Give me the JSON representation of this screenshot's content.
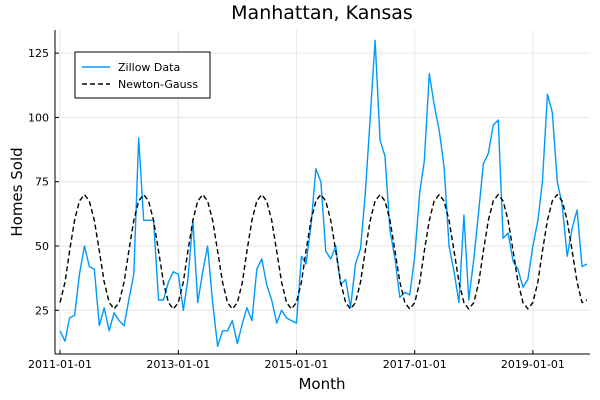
{
  "chart_data": {
    "type": "line",
    "title": "Manhattan, Kansas",
    "xlabel": "Month",
    "ylabel": "Homes Sold",
    "x_axis_type": "date",
    "xlim": [
      "2010-12-01",
      "2019-12-20"
    ],
    "ylim": [
      8,
      134
    ],
    "x_ticks": [
      "2011-01-01",
      "2013-01-01",
      "2015-01-01",
      "2017-01-01",
      "2019-01-01"
    ],
    "y_ticks": [
      25,
      50,
      75,
      100,
      125
    ],
    "grid": true,
    "legend_position": "top-left",
    "x": [
      "2011-01-01",
      "2011-02-01",
      "2011-03-01",
      "2011-04-01",
      "2011-05-01",
      "2011-06-01",
      "2011-07-01",
      "2011-08-01",
      "2011-09-01",
      "2011-10-01",
      "2011-11-01",
      "2011-12-01",
      "2012-01-01",
      "2012-02-01",
      "2012-03-01",
      "2012-04-01",
      "2012-05-01",
      "2012-06-01",
      "2012-07-01",
      "2012-08-01",
      "2012-09-01",
      "2012-10-01",
      "2012-11-01",
      "2012-12-01",
      "2013-01-01",
      "2013-02-01",
      "2013-03-01",
      "2013-04-01",
      "2013-05-01",
      "2013-06-01",
      "2013-07-01",
      "2013-08-01",
      "2013-09-01",
      "2013-10-01",
      "2013-11-01",
      "2013-12-01",
      "2014-01-01",
      "2014-02-01",
      "2014-03-01",
      "2014-04-01",
      "2014-05-01",
      "2014-06-01",
      "2014-07-01",
      "2014-08-01",
      "2014-09-01",
      "2014-10-01",
      "2014-11-01",
      "2014-12-01",
      "2015-01-01",
      "2015-02-01",
      "2015-03-01",
      "2015-04-01",
      "2015-05-01",
      "2015-06-01",
      "2015-07-01",
      "2015-08-01",
      "2015-09-01",
      "2015-10-01",
      "2015-11-01",
      "2015-12-01",
      "2016-01-01",
      "2016-02-01",
      "2016-03-01",
      "2016-04-01",
      "2016-05-01",
      "2016-06-01",
      "2016-07-01",
      "2016-08-01",
      "2016-09-01",
      "2016-10-01",
      "2016-11-01",
      "2016-12-01",
      "2017-01-01",
      "2017-02-01",
      "2017-03-01",
      "2017-04-01",
      "2017-05-01",
      "2017-06-01",
      "2017-07-01",
      "2017-08-01",
      "2017-09-01",
      "2017-10-01",
      "2017-11-01",
      "2017-12-01",
      "2018-01-01",
      "2018-02-01",
      "2018-03-01",
      "2018-04-01",
      "2018-05-01",
      "2018-06-01",
      "2018-07-01",
      "2018-08-01",
      "2018-09-01",
      "2018-10-01",
      "2018-11-01",
      "2018-12-01",
      "2019-01-01",
      "2019-02-01",
      "2019-03-01",
      "2019-04-01",
      "2019-05-01",
      "2019-06-01",
      "2019-07-01",
      "2019-08-01",
      "2019-09-01",
      "2019-10-01",
      "2019-11-01",
      "2019-12-01"
    ],
    "series": [
      {
        "name": "Zillow Data",
        "color": "#009AFA",
        "style": "solid",
        "values": [
          17,
          13,
          22,
          23,
          39,
          50,
          42,
          41,
          19,
          26,
          17,
          24,
          21,
          19,
          29,
          39,
          92,
          60,
          60,
          60,
          29,
          29,
          36,
          40,
          39,
          25,
          37,
          60,
          28,
          40,
          50,
          28,
          11,
          17,
          17,
          21,
          12,
          20,
          26,
          21,
          41,
          45,
          35,
          29,
          20,
          25,
          22,
          21,
          20,
          46,
          43,
          58,
          80,
          75,
          48,
          45,
          50,
          35,
          37,
          26,
          43,
          49,
          70,
          100,
          130,
          91,
          85,
          56,
          45,
          30,
          32,
          31,
          46,
          71,
          83,
          117,
          105,
          95,
          81,
          50,
          40,
          28,
          62,
          29,
          45,
          64,
          82,
          86,
          97,
          99,
          53,
          55,
          44,
          41,
          34,
          37,
          50,
          60,
          75,
          109,
          102,
          75,
          66,
          46,
          57,
          64,
          42,
          43
        ]
      },
      {
        "name": "Newton-Gauss",
        "color": "#000000",
        "style": "dashed",
        "values": [
          28,
          36,
          48,
          60,
          67.5,
          70,
          67.5,
          60,
          48,
          36,
          28,
          25.5,
          28,
          36,
          48,
          60,
          67.5,
          70,
          67.5,
          60,
          48,
          36,
          28,
          25.5,
          28,
          36,
          48,
          60,
          67.5,
          70,
          67.5,
          60,
          48,
          36,
          28,
          25.5,
          28,
          36,
          48,
          60,
          67.5,
          70,
          67.5,
          60,
          48,
          36,
          28,
          25.5,
          28,
          36,
          48,
          60,
          67.5,
          70,
          67.5,
          60,
          48,
          36,
          28,
          25.5,
          28,
          36,
          48,
          60,
          67.5,
          70,
          67.5,
          60,
          48,
          36,
          28,
          25.5,
          28,
          36,
          48,
          60,
          67.5,
          70,
          67.5,
          60,
          48,
          36,
          28,
          25.5,
          28,
          36,
          48,
          60,
          67.5,
          70,
          67.5,
          60,
          48,
          36,
          28,
          25.5,
          28,
          36,
          48,
          60,
          67.5,
          70,
          67.5,
          60,
          48,
          36,
          28,
          29
        ]
      }
    ]
  }
}
